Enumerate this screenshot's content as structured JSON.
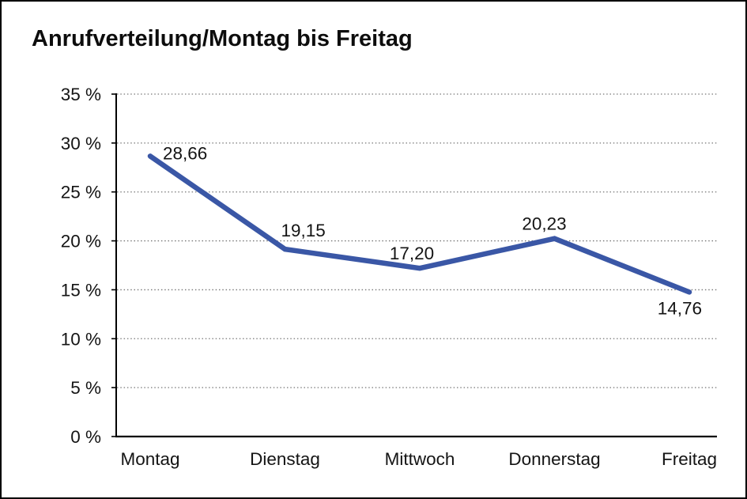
{
  "title": "Anrufverteilung/Montag bis Freitag",
  "colors": {
    "line": "#3A57A6",
    "grid": "#777777",
    "axis": "#000000",
    "text": "#141414",
    "background": "#ffffff",
    "border": "#000000"
  },
  "chart_data": {
    "type": "line",
    "title": "Anrufverteilung/Montag bis Freitag",
    "categories": [
      "Montag",
      "Dienstag",
      "Mittwoch",
      "Donnerstag",
      "Freitag"
    ],
    "values": [
      28.66,
      19.15,
      17.2,
      20.23,
      14.76
    ],
    "value_labels": [
      "28,66",
      "19,15",
      "17,20",
      "20,23",
      "14,76"
    ],
    "series_name": "Anrufverteilung",
    "xlabel": "",
    "ylabel": "",
    "ylim": [
      0,
      35
    ],
    "y_tick_step": 5,
    "y_tick_labels": [
      "0 %",
      "5 %",
      "10 %",
      "15 %",
      "20 %",
      "25 %",
      "30 %",
      "35 %"
    ],
    "grid": "horizontal-dotted",
    "legend_position": "none",
    "markers": "none"
  }
}
